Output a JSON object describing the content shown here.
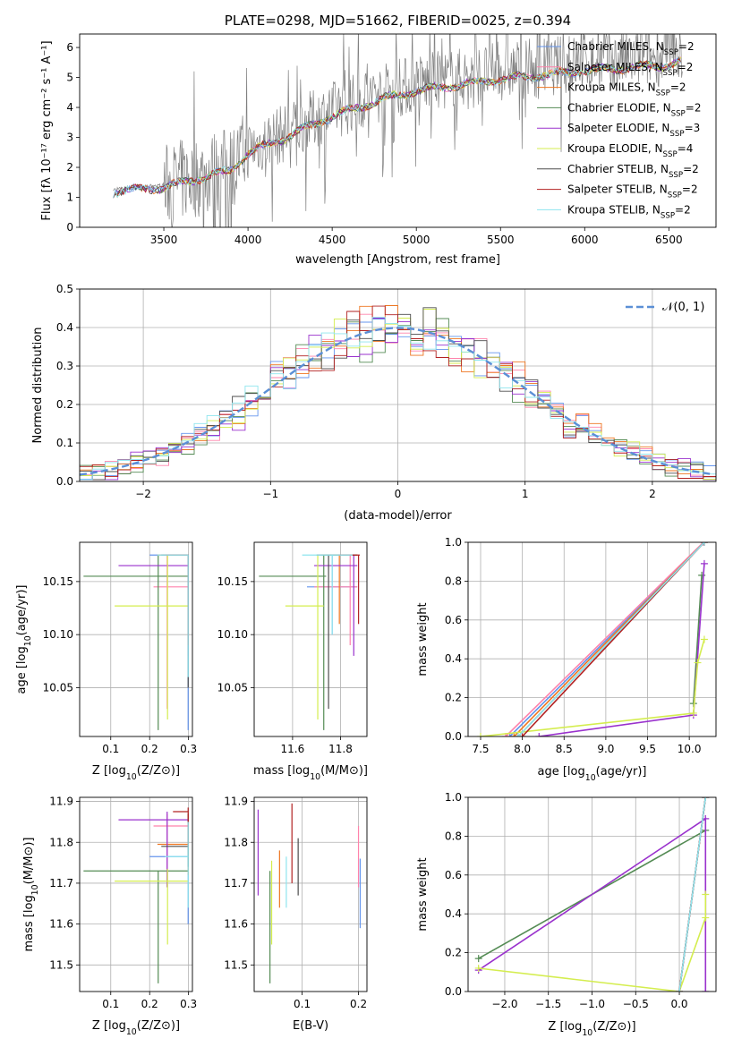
{
  "chart_data": [
    {
      "id": "spectrum",
      "type": "line",
      "title": "PLATE=0298, MJD=51662, FIBERID=0025, z=0.394",
      "xlabel": "wavelength [Angstrom, rest frame]",
      "ylabel": "Flux [fλ 10⁻¹⁷ erg cm⁻² s⁻¹ A⁻¹]",
      "xlim": [
        3000,
        6780
      ],
      "ylim": [
        0,
        6.45
      ],
      "xticks": [
        3500,
        4000,
        4500,
        5000,
        5500,
        6000,
        6500
      ],
      "yticks": [
        0,
        1,
        2,
        3,
        4,
        5,
        6
      ],
      "legend_position": "top-right",
      "data_color": "#808080",
      "series": [
        {
          "name": "Chabrier MILES, N_SSP=2",
          "label_main": "Chabrier MILES, N",
          "label_sub": "SSP",
          "label_tail": "=2",
          "color": "#6495ed"
        },
        {
          "name": "Salpeter MILES, N_SSP=2",
          "label_main": "Salpeter MILES, N",
          "label_sub": "SSP",
          "label_tail": "=2",
          "color": "#ff82ab"
        },
        {
          "name": "Kroupa MILES, N_SSP=2",
          "label_main": "Kroupa MILES, N",
          "label_sub": "SSP",
          "label_tail": "=2",
          "color": "#ee7621"
        },
        {
          "name": "Chabrier ELODIE, N_SSP=2",
          "label_main": "Chabrier ELODIE, N",
          "label_sub": "SSP",
          "label_tail": "=2",
          "color": "#548b54"
        },
        {
          "name": "Salpeter ELODIE, N_SSP=3",
          "label_main": "Salpeter ELODIE, N",
          "label_sub": "SSP",
          "label_tail": "=3",
          "color": "#9a32cd"
        },
        {
          "name": "Kroupa ELODIE, N_SSP=4",
          "label_main": "Kroupa ELODIE, N",
          "label_sub": "SSP",
          "label_tail": "=4",
          "color": "#d4ed4f"
        },
        {
          "name": "Chabrier STELIB, N_SSP=2",
          "label_main": "Chabrier STELIB, N",
          "label_sub": "SSP",
          "label_tail": "=2",
          "color": "#4d4d4d"
        },
        {
          "name": "Salpeter STELIB, N_SSP=2",
          "label_main": "Salpeter STELIB, N",
          "label_sub": "SSP",
          "label_tail": "=2",
          "color": "#b22222"
        },
        {
          "name": "Kroupa STELIB, N_SSP=2",
          "label_main": "Kroupa STELIB, N",
          "label_sub": "SSP",
          "label_tail": "=2",
          "color": "#8ee5ee"
        }
      ],
      "continuum_points": [
        [
          3200,
          1.25
        ],
        [
          3500,
          1.4
        ],
        [
          3700,
          1.7
        ],
        [
          3900,
          2.0
        ],
        [
          4000,
          2.6
        ],
        [
          4200,
          3.1
        ],
        [
          4500,
          3.9
        ],
        [
          4800,
          4.5
        ],
        [
          5000,
          4.8
        ],
        [
          5500,
          5.2
        ],
        [
          6000,
          5.5
        ],
        [
          6500,
          5.7
        ],
        [
          6580,
          5.85
        ]
      ]
    },
    {
      "id": "residuals",
      "type": "line",
      "xlabel": "(data-model)/error",
      "ylabel": "Normed distribution",
      "xlim": [
        -2.5,
        2.5
      ],
      "ylim": [
        0,
        0.5
      ],
      "xticks": [
        -2,
        -1,
        0,
        1,
        2
      ],
      "yticks": [
        0.0,
        0.1,
        0.2,
        0.3,
        0.4,
        0.5
      ],
      "grid": true,
      "legend_position": "top-right",
      "legend_label": "𝒩(0, 1)",
      "gaussian_color": "#5b8fd6",
      "bin_width": 0.1
    },
    {
      "id": "age-vs-z",
      "type": "scatter",
      "xlabel_main": "Z [log",
      "xlabel_sub": "10",
      "xlabel_tail": "(Z/Z⊙)]",
      "ylabel_main": "age  [log",
      "ylabel_sub": "10",
      "ylabel_tail": "(age/yr)]",
      "xlim": [
        0.02,
        0.31
      ],
      "ylim": [
        10.004,
        10.187
      ],
      "xticks": [
        0.1,
        0.2,
        0.3
      ],
      "yticks": [
        10.05,
        10.1,
        10.15
      ],
      "grid": true,
      "points": [
        {
          "x": 0.299,
          "y": 10.175,
          "xerr": [
            0.2,
            0.3
          ],
          "yerr": [
            10.01,
            10.175
          ],
          "color": "#6495ed"
        },
        {
          "x": 0.245,
          "y": 10.145,
          "xerr": [
            0.21,
            0.3
          ],
          "yerr": [
            10.03,
            10.175
          ],
          "color": "#ff82ab"
        },
        {
          "x": 0.299,
          "y": 10.175,
          "xerr": [
            0.22,
            0.3
          ],
          "yerr": [
            10.12,
            10.175
          ],
          "color": "#ee7621"
        },
        {
          "x": 0.222,
          "y": 10.155,
          "xerr": [
            0.03,
            0.3
          ],
          "yerr": [
            10.01,
            10.175
          ],
          "color": "#548b54"
        },
        {
          "x": 0.299,
          "y": 10.165,
          "xerr": [
            0.12,
            0.3
          ],
          "yerr": [
            10.08,
            10.175
          ],
          "color": "#9a32cd"
        },
        {
          "x": 0.246,
          "y": 10.127,
          "xerr": [
            0.11,
            0.3
          ],
          "yerr": [
            10.02,
            10.175
          ],
          "color": "#d4ed4f"
        },
        {
          "x": 0.299,
          "y": 10.175,
          "xerr": [
            0.23,
            0.3
          ],
          "yerr": [
            10.05,
            10.175
          ],
          "color": "#4d4d4d"
        },
        {
          "x": 0.299,
          "y": 10.175,
          "xerr": [
            0.24,
            0.3
          ],
          "yerr": [
            10.09,
            10.175
          ],
          "color": "#b22222"
        },
        {
          "x": 0.299,
          "y": 10.175,
          "xerr": [
            0.22,
            0.3
          ],
          "yerr": [
            10.06,
            10.175
          ],
          "color": "#8ee5ee"
        }
      ]
    },
    {
      "id": "age-vs-mass",
      "type": "scatter",
      "xlabel_main": "mass [log",
      "xlabel_sub": "10",
      "xlabel_tail": "(M/M⊙)]",
      "xlim": [
        11.44,
        11.91
      ],
      "ylim": [
        10.004,
        10.187
      ],
      "xticks": [
        11.6,
        11.8
      ],
      "yticks": [
        10.05,
        10.1,
        10.15
      ],
      "grid": true,
      "points": [
        {
          "x": 11.765,
          "y": 10.145,
          "xerr": [
            11.66,
            11.87
          ],
          "yerr": [
            10.1,
            10.175
          ],
          "color": "#6495ed"
        },
        {
          "x": 11.84,
          "y": 10.145,
          "xerr": [
            11.69,
            11.87
          ],
          "yerr": [
            10.09,
            10.175
          ],
          "color": "#ff82ab"
        },
        {
          "x": 11.795,
          "y": 10.175,
          "xerr": [
            11.72,
            11.87
          ],
          "yerr": [
            10.11,
            10.175
          ],
          "color": "#ee7621"
        },
        {
          "x": 11.73,
          "y": 10.155,
          "xerr": [
            11.46,
            11.74
          ],
          "yerr": [
            10.01,
            10.175
          ],
          "color": "#548b54"
        },
        {
          "x": 11.855,
          "y": 10.165,
          "xerr": [
            11.69,
            11.87
          ],
          "yerr": [
            10.08,
            10.175
          ],
          "color": "#9a32cd"
        },
        {
          "x": 11.705,
          "y": 10.127,
          "xerr": [
            11.57,
            11.73
          ],
          "yerr": [
            10.02,
            10.175
          ],
          "color": "#d4ed4f"
        },
        {
          "x": 11.75,
          "y": 10.175,
          "xerr": [
            11.7,
            11.87
          ],
          "yerr": [
            10.03,
            10.175
          ],
          "color": "#4d4d4d"
        },
        {
          "x": 11.875,
          "y": 10.175,
          "xerr": [
            11.79,
            11.88
          ],
          "yerr": [
            10.11,
            10.175
          ],
          "color": "#b22222"
        },
        {
          "x": 11.765,
          "y": 10.175,
          "xerr": [
            11.64,
            11.85
          ],
          "yerr": [
            10.1,
            10.175
          ],
          "color": "#8ee5ee"
        }
      ]
    },
    {
      "id": "weight-vs-age",
      "type": "line",
      "xlabel_main": "age  [log",
      "xlabel_sub": "10",
      "xlabel_tail": "(age/yr)]",
      "ylabel": "mass weight",
      "xlim": [
        7.35,
        10.32
      ],
      "ylim": [
        0,
        1
      ],
      "xticks": [
        7.5,
        8.0,
        8.5,
        9.0,
        9.5,
        10.0
      ],
      "yticks": [
        0.0,
        0.2,
        0.4,
        0.6,
        0.8,
        1.0
      ],
      "grid": true,
      "series": [
        {
          "color": "#6495ed",
          "points": [
            [
              7.85,
              0.0
            ],
            [
              10.18,
              1.0
            ]
          ]
        },
        {
          "color": "#ff82ab",
          "points": [
            [
              7.8,
              0.0
            ],
            [
              10.17,
              1.0
            ]
          ]
        },
        {
          "color": "#ee7621",
          "points": [
            [
              7.9,
              0.0
            ],
            [
              10.18,
              1.0
            ]
          ]
        },
        {
          "color": "#548b54",
          "points": [
            [
              10.05,
              0.17
            ],
            [
              10.15,
              0.83
            ]
          ]
        },
        {
          "color": "#9a32cd",
          "points": [
            [
              8.2,
              0.0
            ],
            [
              10.05,
              0.11
            ],
            [
              10.18,
              0.89
            ]
          ]
        },
        {
          "color": "#d4ed4f",
          "points": [
            [
              7.5,
              0.0
            ],
            [
              10.05,
              0.12
            ],
            [
              10.1,
              0.38
            ],
            [
              10.18,
              0.5
            ]
          ]
        },
        {
          "color": "#4d4d4d",
          "points": [
            [
              7.95,
              0.0
            ],
            [
              10.18,
              1.0
            ]
          ]
        },
        {
          "color": "#b22222",
          "points": [
            [
              8.0,
              0.0
            ],
            [
              10.18,
              1.0
            ]
          ]
        },
        {
          "color": "#8ee5ee",
          "points": [
            [
              7.95,
              0.0
            ],
            [
              10.18,
              1.0
            ]
          ]
        }
      ]
    },
    {
      "id": "mass-vs-z",
      "type": "scatter",
      "xlabel_main": "Z [log",
      "xlabel_sub": "10",
      "xlabel_tail": "(Z/Z⊙)]",
      "ylabel_main": "mass [log",
      "ylabel_sub": "10",
      "ylabel_tail": "(M/M⊙)]",
      "xlim": [
        0.02,
        0.31
      ],
      "ylim": [
        11.435,
        11.91
      ],
      "xticks": [
        0.1,
        0.2,
        0.3
      ],
      "yticks": [
        11.5,
        11.6,
        11.7,
        11.8,
        11.9
      ],
      "grid": true,
      "points": [
        {
          "x": 0.299,
          "y": 11.765,
          "xerr": [
            0.2,
            0.3
          ],
          "yerr": [
            11.6,
            11.87
          ],
          "color": "#6495ed"
        },
        {
          "x": 0.245,
          "y": 11.84,
          "xerr": [
            0.21,
            0.3
          ],
          "yerr": [
            11.69,
            11.87
          ],
          "color": "#ff82ab"
        },
        {
          "x": 0.299,
          "y": 11.795,
          "xerr": [
            0.22,
            0.3
          ],
          "yerr": [
            11.72,
            11.87
          ],
          "color": "#ee7621"
        },
        {
          "x": 0.222,
          "y": 11.73,
          "xerr": [
            0.03,
            0.3
          ],
          "yerr": [
            11.455,
            11.73
          ],
          "color": "#548b54"
        },
        {
          "x": 0.245,
          "y": 11.855,
          "xerr": [
            0.12,
            0.3
          ],
          "yerr": [
            11.69,
            11.875
          ],
          "color": "#9a32cd"
        },
        {
          "x": 0.246,
          "y": 11.705,
          "xerr": [
            0.11,
            0.3
          ],
          "yerr": [
            11.55,
            11.735
          ],
          "color": "#d4ed4f"
        },
        {
          "x": 0.299,
          "y": 11.79,
          "xerr": [
            0.23,
            0.3
          ],
          "yerr": [
            11.74,
            11.87
          ],
          "color": "#4d4d4d"
        },
        {
          "x": 0.299,
          "y": 11.875,
          "xerr": [
            0.26,
            0.3
          ],
          "yerr": [
            11.79,
            11.885
          ],
          "color": "#b22222"
        },
        {
          "x": 0.299,
          "y": 11.765,
          "xerr": [
            0.24,
            0.3
          ],
          "yerr": [
            11.64,
            11.85
          ],
          "color": "#8ee5ee"
        }
      ]
    },
    {
      "id": "mass-vs-ebv",
      "type": "scatter",
      "xlabel": "E(B-V)",
      "xlim": [
        0.015,
        0.215
      ],
      "ylim": [
        11.435,
        11.91
      ],
      "xticks": [
        0.1,
        0.2
      ],
      "yticks": [
        11.5,
        11.6,
        11.7,
        11.8,
        11.9
      ],
      "grid": true,
      "points": [
        {
          "x": 0.203,
          "y": 11.68,
          "yerr": [
            11.59,
            11.76
          ],
          "color": "#6495ed"
        },
        {
          "x": 0.2,
          "y": 11.765,
          "yerr": [
            11.69,
            11.84
          ],
          "color": "#ff82ab"
        },
        {
          "x": 0.06,
          "y": 11.72,
          "yerr": [
            11.64,
            11.78
          ],
          "color": "#ee7621"
        },
        {
          "x": 0.043,
          "y": 11.63,
          "yerr": [
            11.455,
            11.73
          ],
          "color": "#548b54"
        },
        {
          "x": 0.022,
          "y": 11.775,
          "yerr": [
            11.67,
            11.88
          ],
          "color": "#9a32cd"
        },
        {
          "x": 0.046,
          "y": 11.655,
          "yerr": [
            11.55,
            11.755
          ],
          "color": "#d4ed4f"
        },
        {
          "x": 0.093,
          "y": 11.74,
          "yerr": [
            11.67,
            11.81
          ],
          "color": "#4d4d4d"
        },
        {
          "x": 0.082,
          "y": 11.8,
          "yerr": [
            11.7,
            11.895
          ],
          "color": "#b22222"
        },
        {
          "x": 0.072,
          "y": 11.705,
          "yerr": [
            11.64,
            11.765
          ],
          "color": "#8ee5ee"
        }
      ]
    },
    {
      "id": "weight-vs-z",
      "type": "line",
      "xlabel_main": "Z [log",
      "xlabel_sub": "10",
      "xlabel_tail": "(Z/Z⊙)]",
      "ylabel": "mass weight",
      "xlim": [
        -2.42,
        0.42
      ],
      "ylim": [
        0,
        1
      ],
      "xticks": [
        -2.0,
        -1.5,
        -1.0,
        -0.5,
        0.0
      ],
      "yticks": [
        0.0,
        0.2,
        0.4,
        0.6,
        0.8,
        1.0
      ],
      "grid": true,
      "series": [
        {
          "color": "#6495ed",
          "points": [
            [
              0.0,
              0.0
            ],
            [
              0.3,
              1.0
            ]
          ]
        },
        {
          "color": "#ff82ab",
          "points": [
            [
              0.0,
              0.0
            ],
            [
              0.3,
              1.0
            ]
          ]
        },
        {
          "color": "#ee7621",
          "points": [
            [
              0.0,
              0.0
            ],
            [
              0.3,
              1.0
            ]
          ]
        },
        {
          "color": "#548b54",
          "points": [
            [
              -2.3,
              0.17
            ],
            [
              0.3,
              0.83
            ]
          ]
        },
        {
          "color": "#9a32cd",
          "points": [
            [
              -2.3,
              0.11
            ],
            [
              0.3,
              0.89
            ],
            [
              0.3,
              0.0
            ]
          ]
        },
        {
          "color": "#d4ed4f",
          "points": [
            [
              -2.3,
              0.12
            ],
            [
              0.0,
              0.0
            ],
            [
              0.3,
              0.38
            ],
            [
              0.3,
              0.5
            ]
          ]
        },
        {
          "color": "#4d4d4d",
          "points": [
            [
              0.0,
              0.0
            ],
            [
              0.3,
              1.0
            ]
          ]
        },
        {
          "color": "#b22222",
          "points": [
            [
              0.0,
              0.0
            ],
            [
              0.3,
              1.0
            ]
          ]
        },
        {
          "color": "#8ee5ee",
          "points": [
            [
              0.0,
              0.0
            ],
            [
              0.3,
              1.0
            ]
          ]
        }
      ]
    }
  ]
}
